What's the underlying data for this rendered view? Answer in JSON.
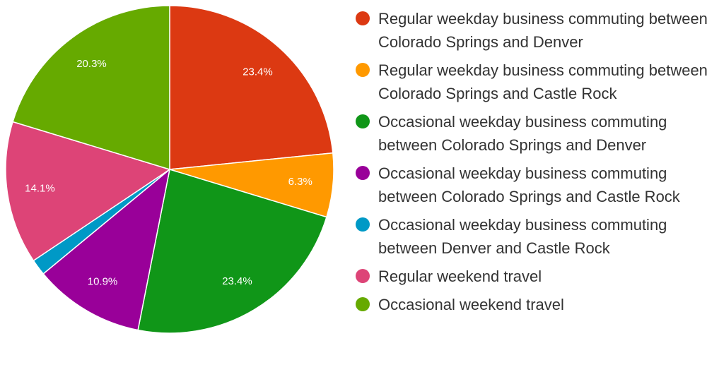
{
  "chart_data": {
    "type": "pie",
    "categories": [
      "Regular weekday business commuting between Colorado Springs and Denver",
      "Regular weekday business commuting between Colorado Springs and Castle Rock",
      "Occasional weekday business commuting between Colorado Springs and Denver",
      "Occasional weekday business commuting between Colorado Springs and Castle Rock",
      "Occasional weekday business commuting between Denver and Castle Rock",
      "Regular weekend travel",
      "Occasional weekend travel"
    ],
    "values": [
      23.4,
      6.3,
      23.4,
      10.9,
      1.6,
      14.1,
      20.3
    ],
    "value_labels": [
      "23.4%",
      "6.3%",
      "23.4%",
      "10.9%",
      null,
      "14.1%",
      "20.3%"
    ],
    "colors": [
      "#dc3912",
      "#ff9900",
      "#109618",
      "#990099",
      "#0099c6",
      "#dd4477",
      "#66aa00"
    ],
    "legend": "right"
  }
}
